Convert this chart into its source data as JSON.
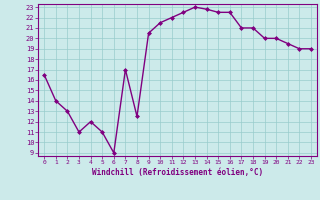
{
  "x": [
    0,
    1,
    2,
    3,
    4,
    5,
    6,
    7,
    8,
    9,
    10,
    11,
    12,
    13,
    14,
    15,
    16,
    17,
    18,
    19,
    20,
    21,
    22,
    23
  ],
  "y": [
    16.5,
    14.0,
    13.0,
    11.0,
    12.0,
    11.0,
    9.0,
    17.0,
    12.5,
    20.5,
    21.5,
    22.0,
    22.5,
    23.0,
    22.8,
    22.5,
    22.5,
    21.0,
    21.0,
    20.0,
    20.0,
    19.5,
    19.0,
    19.0
  ],
  "line_color": "#800080",
  "marker": "D",
  "marker_size": 2.0,
  "bg_color": "#cceaea",
  "grid_color": "#99cccc",
  "xlabel": "Windchill (Refroidissement éolien,°C)",
  "xlabel_color": "#800080",
  "tick_color": "#800080",
  "ylim": [
    9,
    23
  ],
  "xlim": [
    -0.5,
    23.5
  ],
  "yticks": [
    9,
    10,
    11,
    12,
    13,
    14,
    15,
    16,
    17,
    18,
    19,
    20,
    21,
    22,
    23
  ],
  "xticks": [
    0,
    1,
    2,
    3,
    4,
    5,
    6,
    7,
    8,
    9,
    10,
    11,
    12,
    13,
    14,
    15,
    16,
    17,
    18,
    19,
    20,
    21,
    22,
    23
  ],
  "border_color": "#800080",
  "linewidth": 1.0
}
